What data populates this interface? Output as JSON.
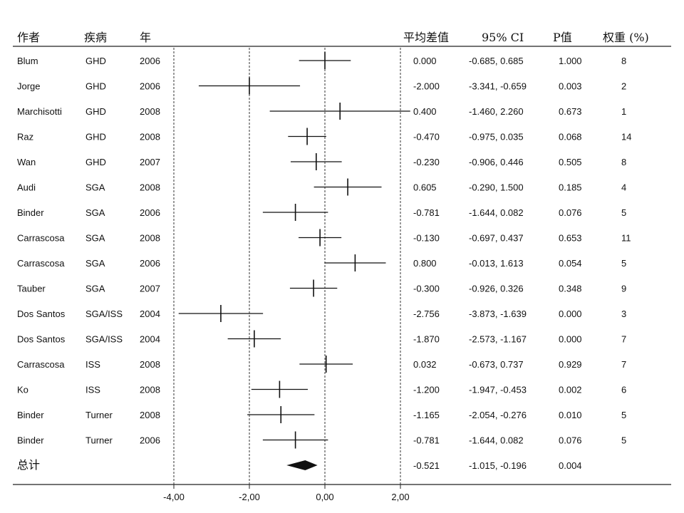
{
  "headers": {
    "author": "作者",
    "disease": "疾病",
    "year": "年",
    "mean_diff": "平均差值",
    "ci": "95% CI",
    "p": "P值",
    "weight": "权重 (%)"
  },
  "chart_data": {
    "type": "forest",
    "title": "",
    "xlabel": "",
    "ylabel": "",
    "xlim": [
      -4,
      2
    ],
    "x_ticks": [
      -4,
      -2,
      0,
      2
    ],
    "x_tick_labels": [
      "-4,00",
      "-2,00",
      "0,00",
      "2,00"
    ],
    "reference_lines": [
      -2,
      0,
      2
    ],
    "studies": [
      {
        "author": "Blum",
        "disease": "GHD",
        "year": "2006",
        "mean": 0.0,
        "lower": -0.685,
        "upper": 0.685,
        "mean_text": "0.000",
        "ci_text": "-0.685, 0.685",
        "p_text": "1.000",
        "weight_text": "8"
      },
      {
        "author": "Jorge",
        "disease": "GHD",
        "year": "2006",
        "mean": -2.0,
        "lower": -3.341,
        "upper": -0.659,
        "mean_text": "-2.000",
        "ci_text": "-3.341, -0.659",
        "p_text": "0.003",
        "weight_text": "2"
      },
      {
        "author": "Marchisotti",
        "disease": "GHD",
        "year": "2008",
        "mean": 0.4,
        "lower": -1.46,
        "upper": 2.26,
        "mean_text": "0.400",
        "ci_text": "-1.460, 2.260",
        "p_text": "0.673",
        "weight_text": "1"
      },
      {
        "author": "Raz",
        "disease": "GHD",
        "year": "2008",
        "mean": -0.47,
        "lower": -0.975,
        "upper": 0.035,
        "mean_text": "-0.470",
        "ci_text": "-0.975, 0.035",
        "p_text": "0.068",
        "weight_text": "14"
      },
      {
        "author": "Wan",
        "disease": "GHD",
        "year": "2007",
        "mean": -0.23,
        "lower": -0.906,
        "upper": 0.446,
        "mean_text": "-0.230",
        "ci_text": "-0.906, 0.446",
        "p_text": "0.505",
        "weight_text": "8"
      },
      {
        "author": "Audi",
        "disease": "SGA",
        "year": "2008",
        "mean": 0.605,
        "lower": -0.29,
        "upper": 1.5,
        "mean_text": "0.605",
        "ci_text": "-0.290, 1.500",
        "p_text": "0.185",
        "weight_text": "4"
      },
      {
        "author": "Binder",
        "disease": "SGA",
        "year": "2006",
        "mean": -0.781,
        "lower": -1.644,
        "upper": 0.082,
        "mean_text": "-0.781",
        "ci_text": "-1.644, 0.082",
        "p_text": "0.076",
        "weight_text": "5"
      },
      {
        "author": "Carrascosa",
        "disease": "SGA",
        "year": "2008",
        "mean": -0.13,
        "lower": -0.697,
        "upper": 0.437,
        "mean_text": "-0.130",
        "ci_text": "-0.697, 0.437",
        "p_text": "0.653",
        "weight_text": "11"
      },
      {
        "author": "Carrascosa",
        "disease": "SGA",
        "year": "2006",
        "mean": 0.8,
        "lower": -0.013,
        "upper": 1.613,
        "mean_text": "0.800",
        "ci_text": "-0.013, 1.613",
        "p_text": "0.054",
        "weight_text": "5"
      },
      {
        "author": "Tauber",
        "disease": "SGA",
        "year": "2007",
        "mean": -0.3,
        "lower": -0.926,
        "upper": 0.326,
        "mean_text": "-0.300",
        "ci_text": "-0.926, 0.326",
        "p_text": "0.348",
        "weight_text": "9"
      },
      {
        "author": "Dos Santos",
        "disease": "SGA/ISS",
        "year": "2004",
        "mean": -2.756,
        "lower": -3.873,
        "upper": -1.639,
        "mean_text": "-2.756",
        "ci_text": "-3.873, -1.639",
        "p_text": "0.000",
        "weight_text": "3"
      },
      {
        "author": "Dos Santos",
        "disease": "SGA/ISS",
        "year": "2004",
        "mean": -1.87,
        "lower": -2.573,
        "upper": -1.167,
        "mean_text": "-1.870",
        "ci_text": "-2.573, -1.167",
        "p_text": "0.000",
        "weight_text": "7"
      },
      {
        "author": "Carrascosa",
        "disease": "ISS",
        "year": "2008",
        "mean": 0.032,
        "lower": -0.673,
        "upper": 0.737,
        "mean_text": "0.032",
        "ci_text": "-0.673, 0.737",
        "p_text": "0.929",
        "weight_text": "7"
      },
      {
        "author": "Ko",
        "disease": "ISS",
        "year": "2008",
        "mean": -1.2,
        "lower": -1.947,
        "upper": -0.453,
        "mean_text": "-1.200",
        "ci_text": "-1.947, -0.453",
        "p_text": "0.002",
        "weight_text": "6"
      },
      {
        "author": "Binder",
        "disease": "Turner",
        "year": "2008",
        "mean": -1.165,
        "lower": -2.054,
        "upper": -0.276,
        "mean_text": "-1.165",
        "ci_text": "-2.054, -0.276",
        "p_text": "0.010",
        "weight_text": "5"
      },
      {
        "author": "Binder",
        "disease": "Turner",
        "year": "2006",
        "mean": -0.781,
        "lower": -1.644,
        "upper": 0.082,
        "mean_text": "-0.781",
        "ci_text": "-1.644, 0.082",
        "p_text": "0.076",
        "weight_text": "5"
      }
    ],
    "summary": {
      "label": "总计",
      "mean": -0.521,
      "lower": -1.015,
      "upper": -0.196,
      "mean_text": "-0.521",
      "ci_text": "-1.015, -0.196",
      "p_text": "0.004"
    }
  }
}
